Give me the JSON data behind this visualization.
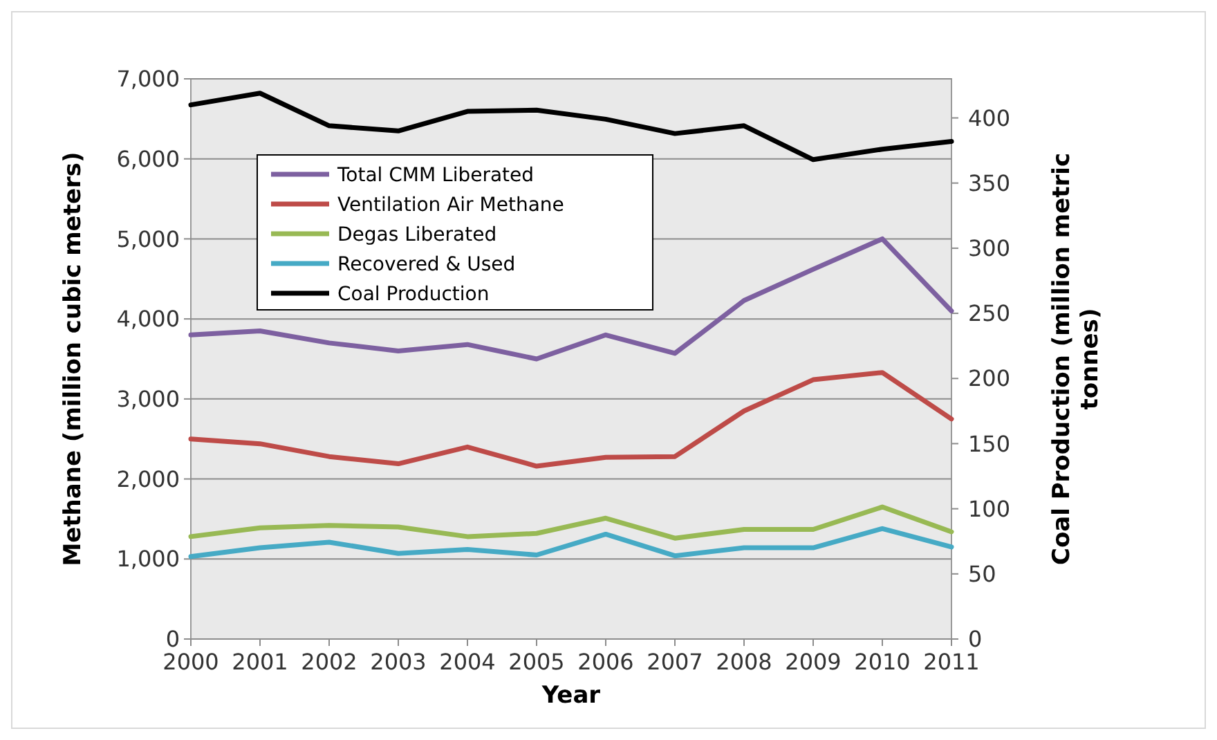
{
  "chart_data": {
    "type": "line",
    "xlabel": "Year",
    "ylabel": "Methane (million cubic meters)",
    "y2label": "Coal Production (million metric tonnes)",
    "categories": [
      "2000",
      "2001",
      "2002",
      "2003",
      "2004",
      "2005",
      "2006",
      "2007",
      "2008",
      "2009",
      "2010",
      "2011"
    ],
    "series": [
      {
        "name": "Total CMM Liberated",
        "color": "#7d60a0",
        "values": [
          3800,
          3850,
          3700,
          3600,
          3680,
          3500,
          3800,
          3570,
          4230,
          4620,
          5000,
          4100
        ]
      },
      {
        "name": "Ventilation Air Methane",
        "color": "#be4b48",
        "values": [
          2500,
          2440,
          2280,
          2190,
          2400,
          2160,
          2270,
          2280,
          2850,
          3240,
          3330,
          2750
        ]
      },
      {
        "name": "Degas Liberated",
        "color": "#98b954",
        "values": [
          1280,
          1390,
          1420,
          1400,
          1280,
          1320,
          1510,
          1260,
          1370,
          1370,
          1650,
          1340
        ]
      },
      {
        "name": "Recovered & Used",
        "color": "#46aac5",
        "values": [
          1030,
          1140,
          1210,
          1070,
          1120,
          1050,
          1310,
          1040,
          1140,
          1140,
          1380,
          1150
        ]
      },
      {
        "name": "Coal Production",
        "color": "#000000",
        "axis": "y2",
        "values": [
          410,
          419,
          394,
          390,
          405,
          406,
          399,
          388,
          394,
          368,
          376,
          382
        ]
      }
    ],
    "ylim": [
      0,
      7000
    ],
    "yticks": [
      {
        "value": 0,
        "label": "0"
      },
      {
        "value": 1000,
        "label": "1,000"
      },
      {
        "value": 2000,
        "label": "2,000"
      },
      {
        "value": 3000,
        "label": "3,000"
      },
      {
        "value": 4000,
        "label": "4,000"
      },
      {
        "value": 5000,
        "label": "5,000"
      },
      {
        "value": 6000,
        "label": "6,000"
      },
      {
        "value": 7000,
        "label": "7,000"
      }
    ],
    "y2lim": [
      0,
      430
    ],
    "y2ticks": [
      0,
      50,
      100,
      150,
      200,
      250,
      300,
      350,
      400
    ],
    "grid": "y",
    "legend": "top left",
    "marker": "none",
    "line_style": "solid"
  }
}
